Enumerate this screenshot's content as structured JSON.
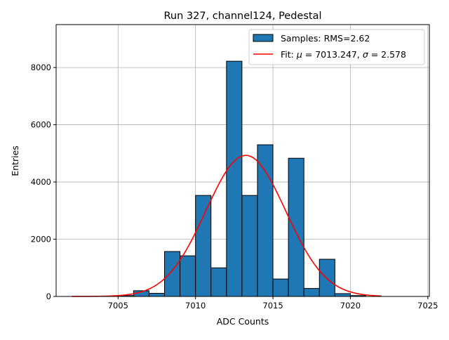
{
  "chart_data": {
    "type": "bar",
    "title": "Run 327, channel124, Pedestal",
    "xlabel": "ADC Counts",
    "ylabel": "Entries",
    "xlim": [
      7001.0,
      7025.1
    ],
    "ylim": [
      0,
      9500
    ],
    "grid": true,
    "xticks": [
      7005,
      7010,
      7015,
      7020,
      7025
    ],
    "yticks": [
      0,
      2000,
      4000,
      6000,
      8000
    ],
    "bin_width": 1,
    "bin_edges_start": [
      7005,
      7006,
      7007,
      7008,
      7009,
      7010,
      7011,
      7012,
      7013,
      7014,
      7015,
      7016,
      7017,
      7018,
      7019,
      7020
    ],
    "values": [
      30,
      200,
      110,
      1570,
      1420,
      3530,
      1000,
      8220,
      3530,
      5300,
      610,
      4830,
      280,
      1300,
      100,
      30
    ],
    "bar_color": "#1f77b4",
    "fit": {
      "mu": 7013.247,
      "sigma": 2.578,
      "amplitude": 4930,
      "range": [
        7002,
        7022
      ],
      "color": "#ff0000"
    },
    "legend_position": "top-right",
    "legend": [
      {
        "label": "Samples: RMS=2.62",
        "kind": "patch"
      },
      {
        "label_prefix": "Fit: ",
        "mu_symbol": "μ",
        "mu_text": " = 7013.247, ",
        "sigma_symbol": "σ",
        "sigma_text": " = 2.578",
        "kind": "line"
      }
    ]
  }
}
